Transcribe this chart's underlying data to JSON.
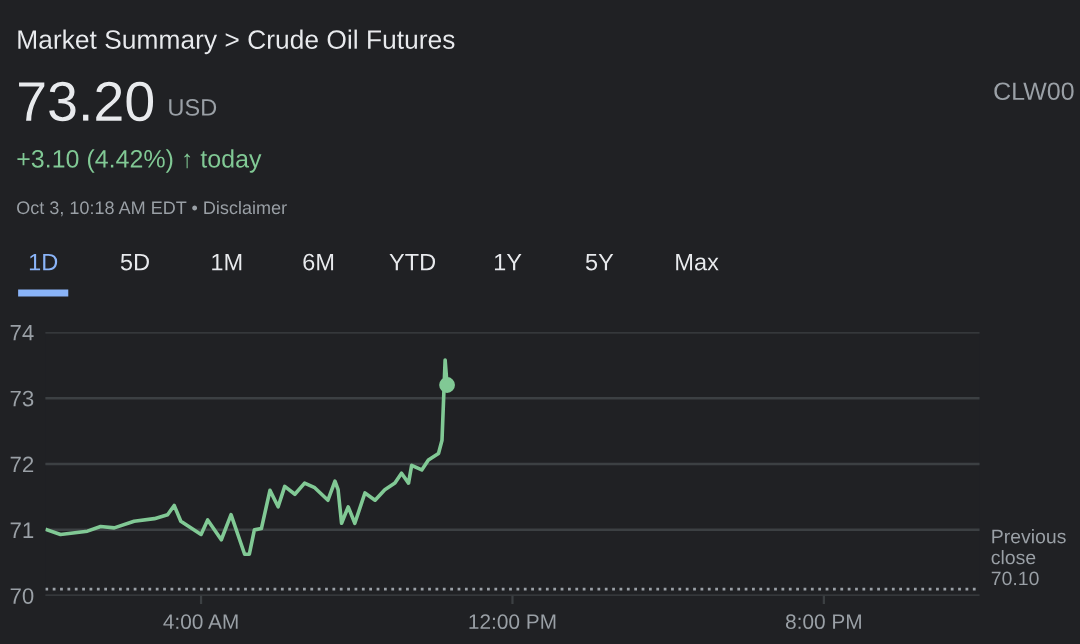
{
  "chart_data": {
    "type": "line",
    "title": "Market Summary > Crude Oil Futures",
    "subtitle": "73.20",
    "annotations": [
      "USD",
      "+3.10 (4.42%) ↑ today",
      "Oct 3, 10:18 AM EDT • Disclaimer",
      "CLW00",
      "1D",
      "5D",
      "1M",
      "6M",
      "YTD",
      "1Y",
      "5Y",
      "Max"
    ],
    "series": [
      {
        "color": "#81c995",
        "x": [
          0.05,
          0.39,
          1.08,
          1.42,
          1.77,
          2.28,
          2.8,
          3.14,
          3.31,
          3.48,
          4.0,
          4.17,
          4.52,
          4.77,
          5.12,
          5.24,
          5.37,
          5.55,
          5.77,
          5.98,
          6.15,
          6.41,
          6.66,
          6.92,
          7.26,
          7.44,
          7.52,
          7.61,
          7.78,
          7.95,
          8.21,
          8.47,
          8.72,
          8.98,
          9.15,
          9.33,
          9.41,
          9.67,
          9.84,
          10.1,
          10.19,
          10.27,
          10.32
        ],
        "values": [
          71.0,
          70.93,
          70.98,
          71.05,
          71.03,
          71.13,
          71.17,
          71.23,
          71.37,
          71.13,
          70.93,
          71.15,
          70.85,
          71.23,
          70.63,
          70.63,
          71.0,
          71.02,
          71.6,
          71.35,
          71.66,
          71.54,
          71.71,
          71.64,
          71.45,
          71.74,
          71.61,
          71.1,
          71.35,
          71.1,
          71.56,
          71.45,
          71.61,
          71.71,
          71.86,
          71.71,
          71.98,
          71.91,
          72.06,
          72.16,
          72.36,
          73.58,
          73.2
        ]
      },
      {
        "type": "scatter",
        "color": "#81c995",
        "marker": "circle",
        "x": [
          10.32
        ],
        "values": [
          73.2
        ]
      }
    ],
    "xlim": [
      0,
      24
    ],
    "xticks": [
      {
        "value": 4,
        "label": "4:00 AM"
      },
      {
        "value": 12,
        "label": "12:00 PM"
      },
      {
        "value": 20,
        "label": "8:00 PM"
      }
    ],
    "ylim": [
      70,
      74
    ],
    "yticks": [
      70,
      71,
      72,
      73,
      74
    ],
    "ref_lines": [
      {
        "axis": "y",
        "value": 70.1,
        "label": "Previous\nclose\n70.10",
        "color": "#9aa0a6",
        "line_style": "dotted"
      }
    ],
    "grid": "y",
    "line_style": "solid"
  }
}
